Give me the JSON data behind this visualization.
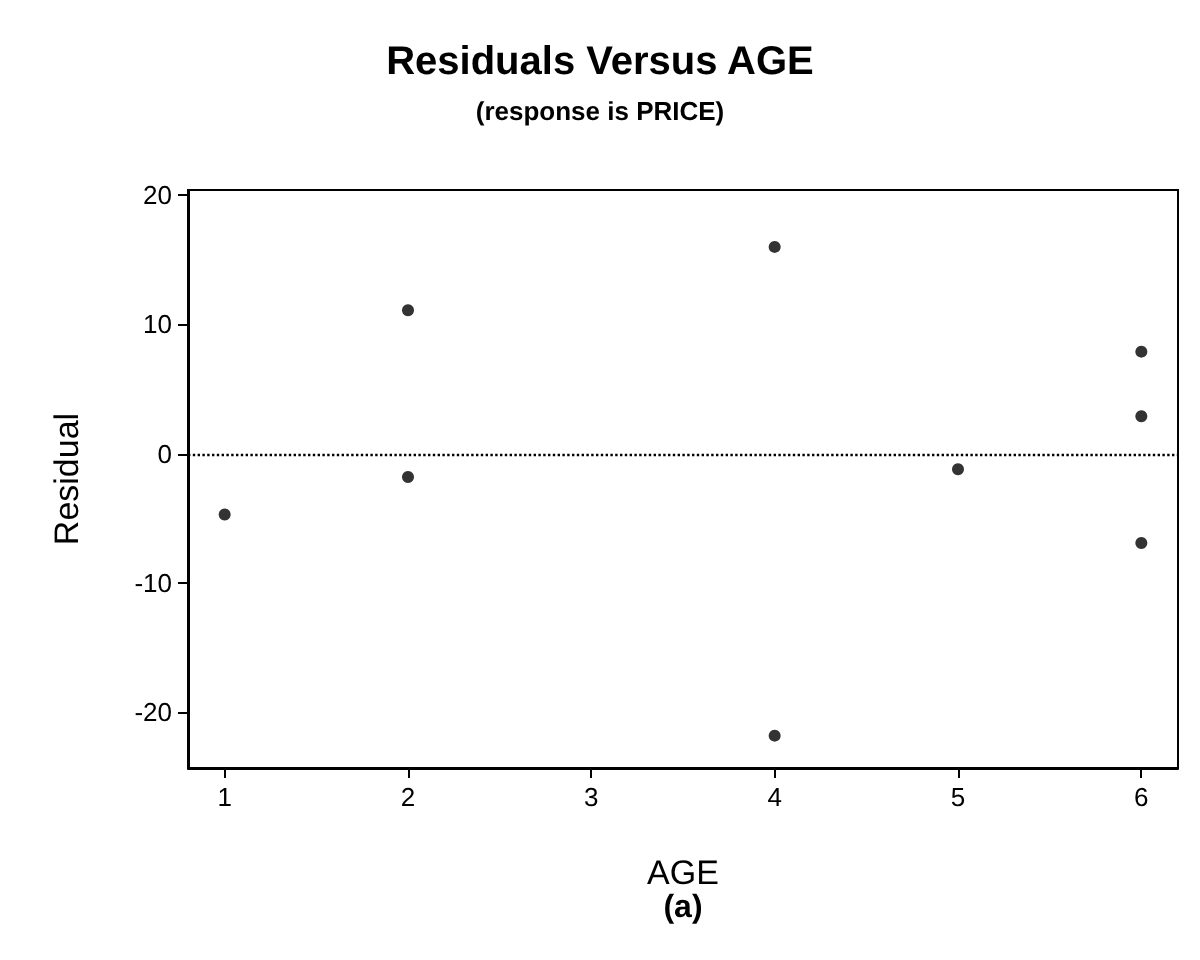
{
  "chart_data": {
    "type": "scatter",
    "title": "Residuals Versus AGE",
    "subtitle": "(response is PRICE)",
    "xlabel": "AGE",
    "ylabel": "Residual",
    "annotations": [
      "(a)"
    ],
    "x": [
      1,
      2,
      2,
      4,
      4,
      5,
      6,
      6,
      6
    ],
    "values": [
      -4.7,
      11.1,
      -1.8,
      16.0,
      -21.8,
      -1.2,
      7.9,
      2.9,
      -6.9
    ],
    "color": "#000000",
    "marker": "circle",
    "xlim": [
      0.8,
      6.2
    ],
    "xticks": [
      1,
      2,
      3,
      4,
      5,
      6
    ],
    "ylim": [
      -24.3,
      20.4
    ],
    "yticks": [
      -20,
      -10,
      0,
      10,
      20
    ],
    "ref_lines": [
      {
        "axis": "y",
        "value": 0,
        "line_style": "dotted",
        "color": "#000000"
      }
    ],
    "grid": false
  }
}
